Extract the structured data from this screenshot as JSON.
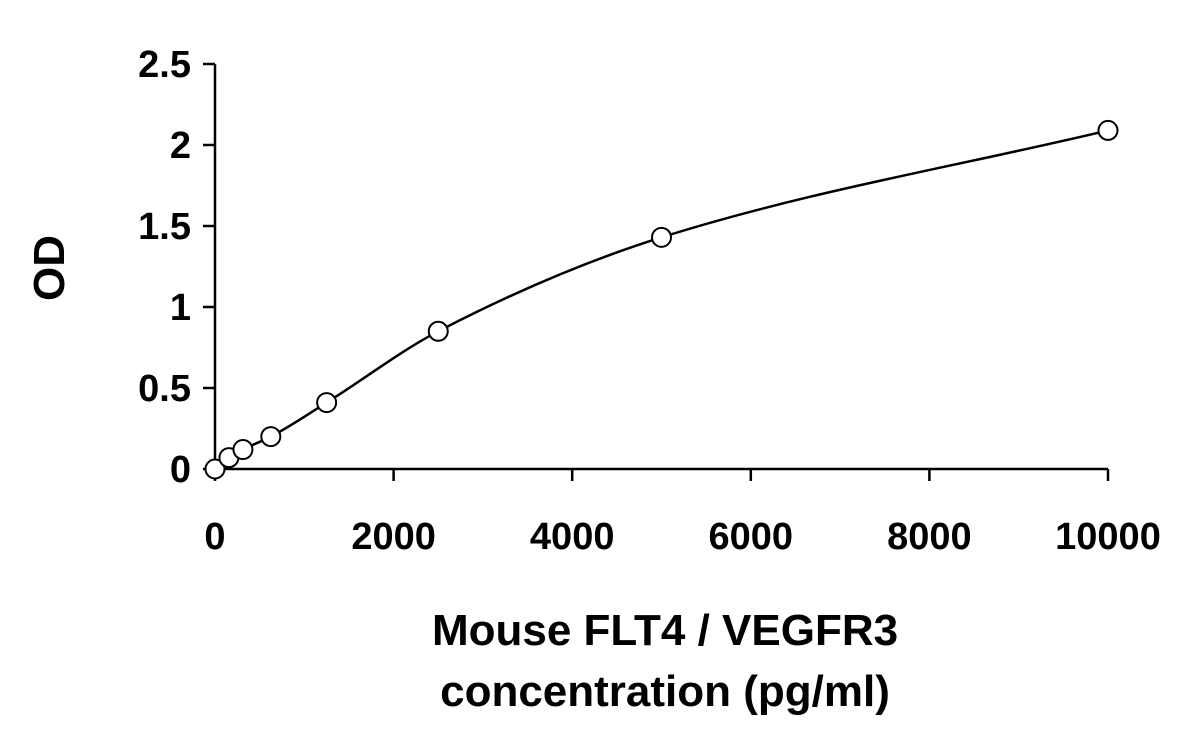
{
  "chart_data": {
    "type": "scatter",
    "title": "",
    "xlabel_lines": [
      "Mouse FLT4 / VEGFR3",
      "concentration (pg/ml)"
    ],
    "ylabel": "OD",
    "xlim": [
      0,
      10000
    ],
    "ylim": [
      0,
      2.5
    ],
    "x_ticks": [
      0,
      2000,
      4000,
      6000,
      8000,
      10000
    ],
    "x_tick_labels": [
      "0",
      "2000",
      "4000",
      "6000",
      "8000",
      "10000"
    ],
    "y_ticks": [
      0,
      0.5,
      1,
      1.5,
      2,
      2.5
    ],
    "y_tick_labels": [
      "0",
      "0.5",
      "1",
      "1.5",
      "2",
      "2.5"
    ],
    "grid": false,
    "legend": "none",
    "series": [
      {
        "x": [
          0,
          156,
          313,
          625,
          1250,
          2500,
          5000,
          10000
        ],
        "y": [
          0.0,
          0.07,
          0.12,
          0.2,
          0.41,
          0.85,
          1.43,
          2.09
        ],
        "marker": "open-circle",
        "fit": "smooth-curve"
      }
    ],
    "colors": {
      "axis": "#000000",
      "curve": "#000000",
      "marker": "#000000"
    }
  }
}
